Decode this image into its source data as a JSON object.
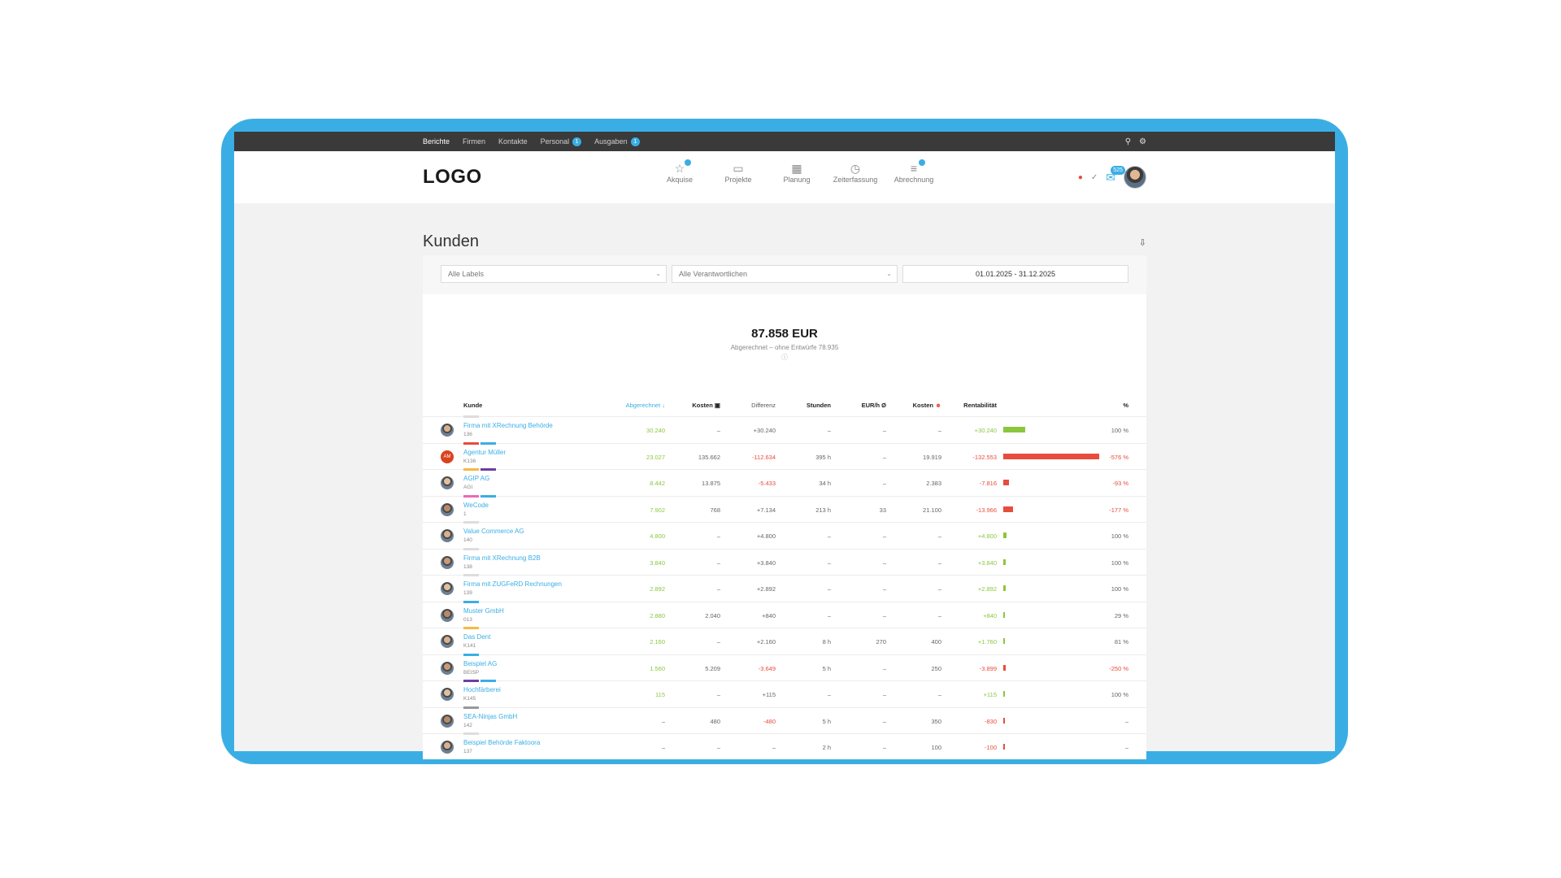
{
  "topnav": {
    "items": [
      {
        "label": "Berichte",
        "badge": ""
      },
      {
        "label": "Firmen",
        "badge": ""
      },
      {
        "label": "Kontakte",
        "badge": ""
      },
      {
        "label": "Personal",
        "badge": "1"
      },
      {
        "label": "Ausgaben",
        "badge": "1"
      }
    ]
  },
  "header": {
    "logo": "LOGO",
    "nav": [
      {
        "label": "Akquise",
        "icon": "star-icon",
        "badge": true
      },
      {
        "label": "Projekte",
        "icon": "folder-icon",
        "badge": false
      },
      {
        "label": "Planung",
        "icon": "calendar-icon",
        "badge": false
      },
      {
        "label": "Zeiterfassung",
        "icon": "clock-icon",
        "badge": false
      },
      {
        "label": "Abrechnung",
        "icon": "stack-icon",
        "badge": true
      }
    ],
    "chat_count": "525"
  },
  "page": {
    "title": "Kunden"
  },
  "filters": {
    "labels": "Alle Labels",
    "owners": "Alle Verantwortlichen",
    "daterange": "01.01.2025 - 31.12.2025"
  },
  "summary": {
    "amount": "87.858 EUR",
    "sub": "Abgerechnet – ohne Entwürfe 78.935",
    "info": "ⓘ"
  },
  "table": {
    "headers": {
      "kunde": "Kunde",
      "abgerechnet": "Abgerechnet ↓",
      "kosten": "Kosten",
      "differenz": "Differenz",
      "stunden": "Stunden",
      "eurh": "EUR/h Ø",
      "kosten2": "Kosten",
      "rentabilitaet": "Rentabilität",
      "pct": "%"
    },
    "rows": [
      {
        "name": "Firma mit XRechnung Behörde",
        "num": "136",
        "labels": [
          "#dddddd"
        ],
        "avatar": "person",
        "abgerechnet": "30.240",
        "kosten": "–",
        "differenz": "+30.240",
        "diff_class": "grey",
        "stunden": "–",
        "eurh": "–",
        "kosten2": "–",
        "rent": "+30.240",
        "rent_class": "green",
        "rent_value": 30240,
        "pct": "100 %",
        "pct_class": "grey"
      },
      {
        "name": "Agentur Müller",
        "num": "K136",
        "labels": [
          "#e74c3c",
          "#3aaee4"
        ],
        "avatar": "AM",
        "abgerechnet": "23.027",
        "kosten": "135.662",
        "differenz": "-112.634",
        "diff_class": "red",
        "stunden": "395 h",
        "eurh": "–",
        "kosten2": "19.919",
        "rent": "-132.553",
        "rent_class": "red",
        "rent_value": -132553,
        "pct": "-576 %",
        "pct_class": "red"
      },
      {
        "name": "AGIP AG",
        "num": "AGI",
        "labels": [
          "#f5b942",
          "#6c3fa0"
        ],
        "avatar": "person",
        "abgerechnet": "8.442",
        "kosten": "13.875",
        "differenz": "-5.433",
        "diff_class": "red",
        "stunden": "34 h",
        "eurh": "–",
        "kosten2": "2.383",
        "rent": "-7.816",
        "rent_class": "red",
        "rent_value": -7816,
        "pct": "-93 %",
        "pct_class": "red"
      },
      {
        "name": "WeCode",
        "num": "1",
        "labels": [
          "#e86ab8",
          "#3aaee4"
        ],
        "avatar": "person",
        "abgerechnet": "7.902",
        "kosten": "768",
        "differenz": "+7.134",
        "diff_class": "grey",
        "stunden": "213 h",
        "eurh": "33",
        "kosten2": "21.100",
        "rent": "-13.966",
        "rent_class": "red",
        "rent_value": -13966,
        "pct": "-177 %",
        "pct_class": "red"
      },
      {
        "name": "Value Commerce AG",
        "num": "140",
        "labels": [
          "#dddddd"
        ],
        "avatar": "person",
        "abgerechnet": "4.800",
        "kosten": "–",
        "differenz": "+4.800",
        "diff_class": "grey",
        "stunden": "–",
        "eurh": "–",
        "kosten2": "–",
        "rent": "+4.800",
        "rent_class": "green",
        "rent_value": 4800,
        "pct": "100 %",
        "pct_class": "grey"
      },
      {
        "name": "Firma mit XRechnung B2B",
        "num": "138",
        "labels": [
          "#dddddd"
        ],
        "avatar": "person",
        "abgerechnet": "3.840",
        "kosten": "–",
        "differenz": "+3.840",
        "diff_class": "grey",
        "stunden": "–",
        "eurh": "–",
        "kosten2": "–",
        "rent": "+3.840",
        "rent_class": "green",
        "rent_value": 3840,
        "pct": "100 %",
        "pct_class": "grey"
      },
      {
        "name": "Firma mit ZUGFeRD Rechnungen",
        "num": "139",
        "labels": [
          "#dddddd"
        ],
        "avatar": "person",
        "abgerechnet": "2.892",
        "kosten": "–",
        "differenz": "+2.892",
        "diff_class": "grey",
        "stunden": "–",
        "eurh": "–",
        "kosten2": "–",
        "rent": "+2.892",
        "rent_class": "green",
        "rent_value": 2892,
        "pct": "100 %",
        "pct_class": "grey"
      },
      {
        "name": "Muster GmbH",
        "num": "013",
        "labels": [
          "#3aaee4"
        ],
        "avatar": "person",
        "abgerechnet": "2.880",
        "kosten": "2.040",
        "differenz": "+840",
        "diff_class": "grey",
        "stunden": "–",
        "eurh": "–",
        "kosten2": "–",
        "rent": "+840",
        "rent_class": "green",
        "rent_value": 840,
        "pct": "29 %",
        "pct_class": "grey"
      },
      {
        "name": "Das Dent",
        "num": "K141",
        "labels": [
          "#f5b942"
        ],
        "avatar": "person",
        "abgerechnet": "2.160",
        "kosten": "–",
        "differenz": "+2.160",
        "diff_class": "grey",
        "stunden": "8 h",
        "eurh": "270",
        "kosten2": "400",
        "rent": "+1.760",
        "rent_class": "green",
        "rent_value": 1760,
        "pct": "81 %",
        "pct_class": "grey"
      },
      {
        "name": "Beispiel AG",
        "num": "BEISP",
        "labels": [
          "#3aaee4"
        ],
        "avatar": "person",
        "abgerechnet": "1.560",
        "kosten": "5.209",
        "differenz": "-3.649",
        "diff_class": "red",
        "stunden": "5 h",
        "eurh": "–",
        "kosten2": "250",
        "rent": "-3.899",
        "rent_class": "red",
        "rent_value": -3899,
        "pct": "-250 %",
        "pct_class": "red"
      },
      {
        "name": "Hochfärberei",
        "num": "K145",
        "labels": [
          "#6c3fa0",
          "#3aaee4"
        ],
        "avatar": "person",
        "abgerechnet": "115",
        "kosten": "–",
        "differenz": "+115",
        "diff_class": "grey",
        "stunden": "–",
        "eurh": "–",
        "kosten2": "–",
        "rent": "+115",
        "rent_class": "green",
        "rent_value": 115,
        "pct": "100 %",
        "pct_class": "grey"
      },
      {
        "name": "SEA-Ninjas GmbH",
        "num": "142",
        "labels": [
          "#999999"
        ],
        "avatar": "person",
        "abgerechnet": "–",
        "kosten": "480",
        "differenz": "-480",
        "diff_class": "red",
        "stunden": "5 h",
        "eurh": "–",
        "kosten2": "350",
        "rent": "-830",
        "rent_class": "red",
        "rent_value": -830,
        "pct": "–",
        "pct_class": "grey"
      },
      {
        "name": "Beispiel Behörde Faktoora",
        "num": "137",
        "labels": [
          "#dddddd"
        ],
        "avatar": "person",
        "abgerechnet": "–",
        "kosten": "–",
        "differenz": "–",
        "diff_class": "grey",
        "stunden": "2 h",
        "eurh": "–",
        "kosten2": "100",
        "rent": "-100",
        "rent_class": "red",
        "rent_value": -100,
        "pct": "–",
        "pct_class": "grey"
      }
    ]
  },
  "colors": {
    "accent": "#3aaee4",
    "positive": "#8cc63f",
    "negative": "#e74c3c"
  }
}
